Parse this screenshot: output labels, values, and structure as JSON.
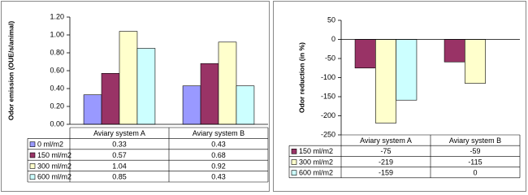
{
  "chart_data": [
    {
      "type": "bar",
      "y_label": "Odor emission (OUE/s/animal)",
      "categories": [
        "Aviary system A",
        "Aviary system B"
      ],
      "series": [
        {
          "name": "0 ml/m2",
          "color": "#9999ff",
          "values": [
            0.33,
            0.43
          ]
        },
        {
          "name": "150 ml/m2",
          "color": "#993366",
          "values": [
            0.57,
            0.68
          ]
        },
        {
          "name": "300 ml/m2",
          "color": "#ffffcc",
          "values": [
            1.04,
            0.92
          ]
        },
        {
          "name": "600 ml/m2",
          "color": "#ccffff",
          "values": [
            0.85,
            0.43
          ]
        }
      ],
      "ylim": [
        0,
        1.2
      ],
      "yticks": [
        {
          "value": 0,
          "label": "0.00"
        },
        {
          "value": 0.2,
          "label": "0.20"
        },
        {
          "value": 0.4,
          "label": "0.40"
        },
        {
          "value": 0.6,
          "label": "0.60"
        },
        {
          "value": 0.8,
          "label": "0.80"
        },
        {
          "value": 1,
          "label": "1.00"
        },
        {
          "value": 1.2,
          "label": "1.20"
        }
      ],
      "grid": false
    },
    {
      "type": "bar",
      "y_label": "Odor reduction (in %)",
      "categories": [
        "Aviary system A",
        "Aviary system B"
      ],
      "series": [
        {
          "name": "150 ml/m2",
          "color": "#993366",
          "values": [
            -75,
            -59
          ]
        },
        {
          "name": "300 ml/m2",
          "color": "#ffffcc",
          "values": [
            -219,
            -115
          ]
        },
        {
          "name": "600 ml/m2",
          "color": "#ccffff",
          "values": [
            -159,
            0
          ]
        }
      ],
      "ylim": [
        -250,
        50
      ],
      "yticks": [
        50,
        0,
        -50,
        -100,
        -150,
        -200,
        -250
      ],
      "grid": false
    }
  ]
}
